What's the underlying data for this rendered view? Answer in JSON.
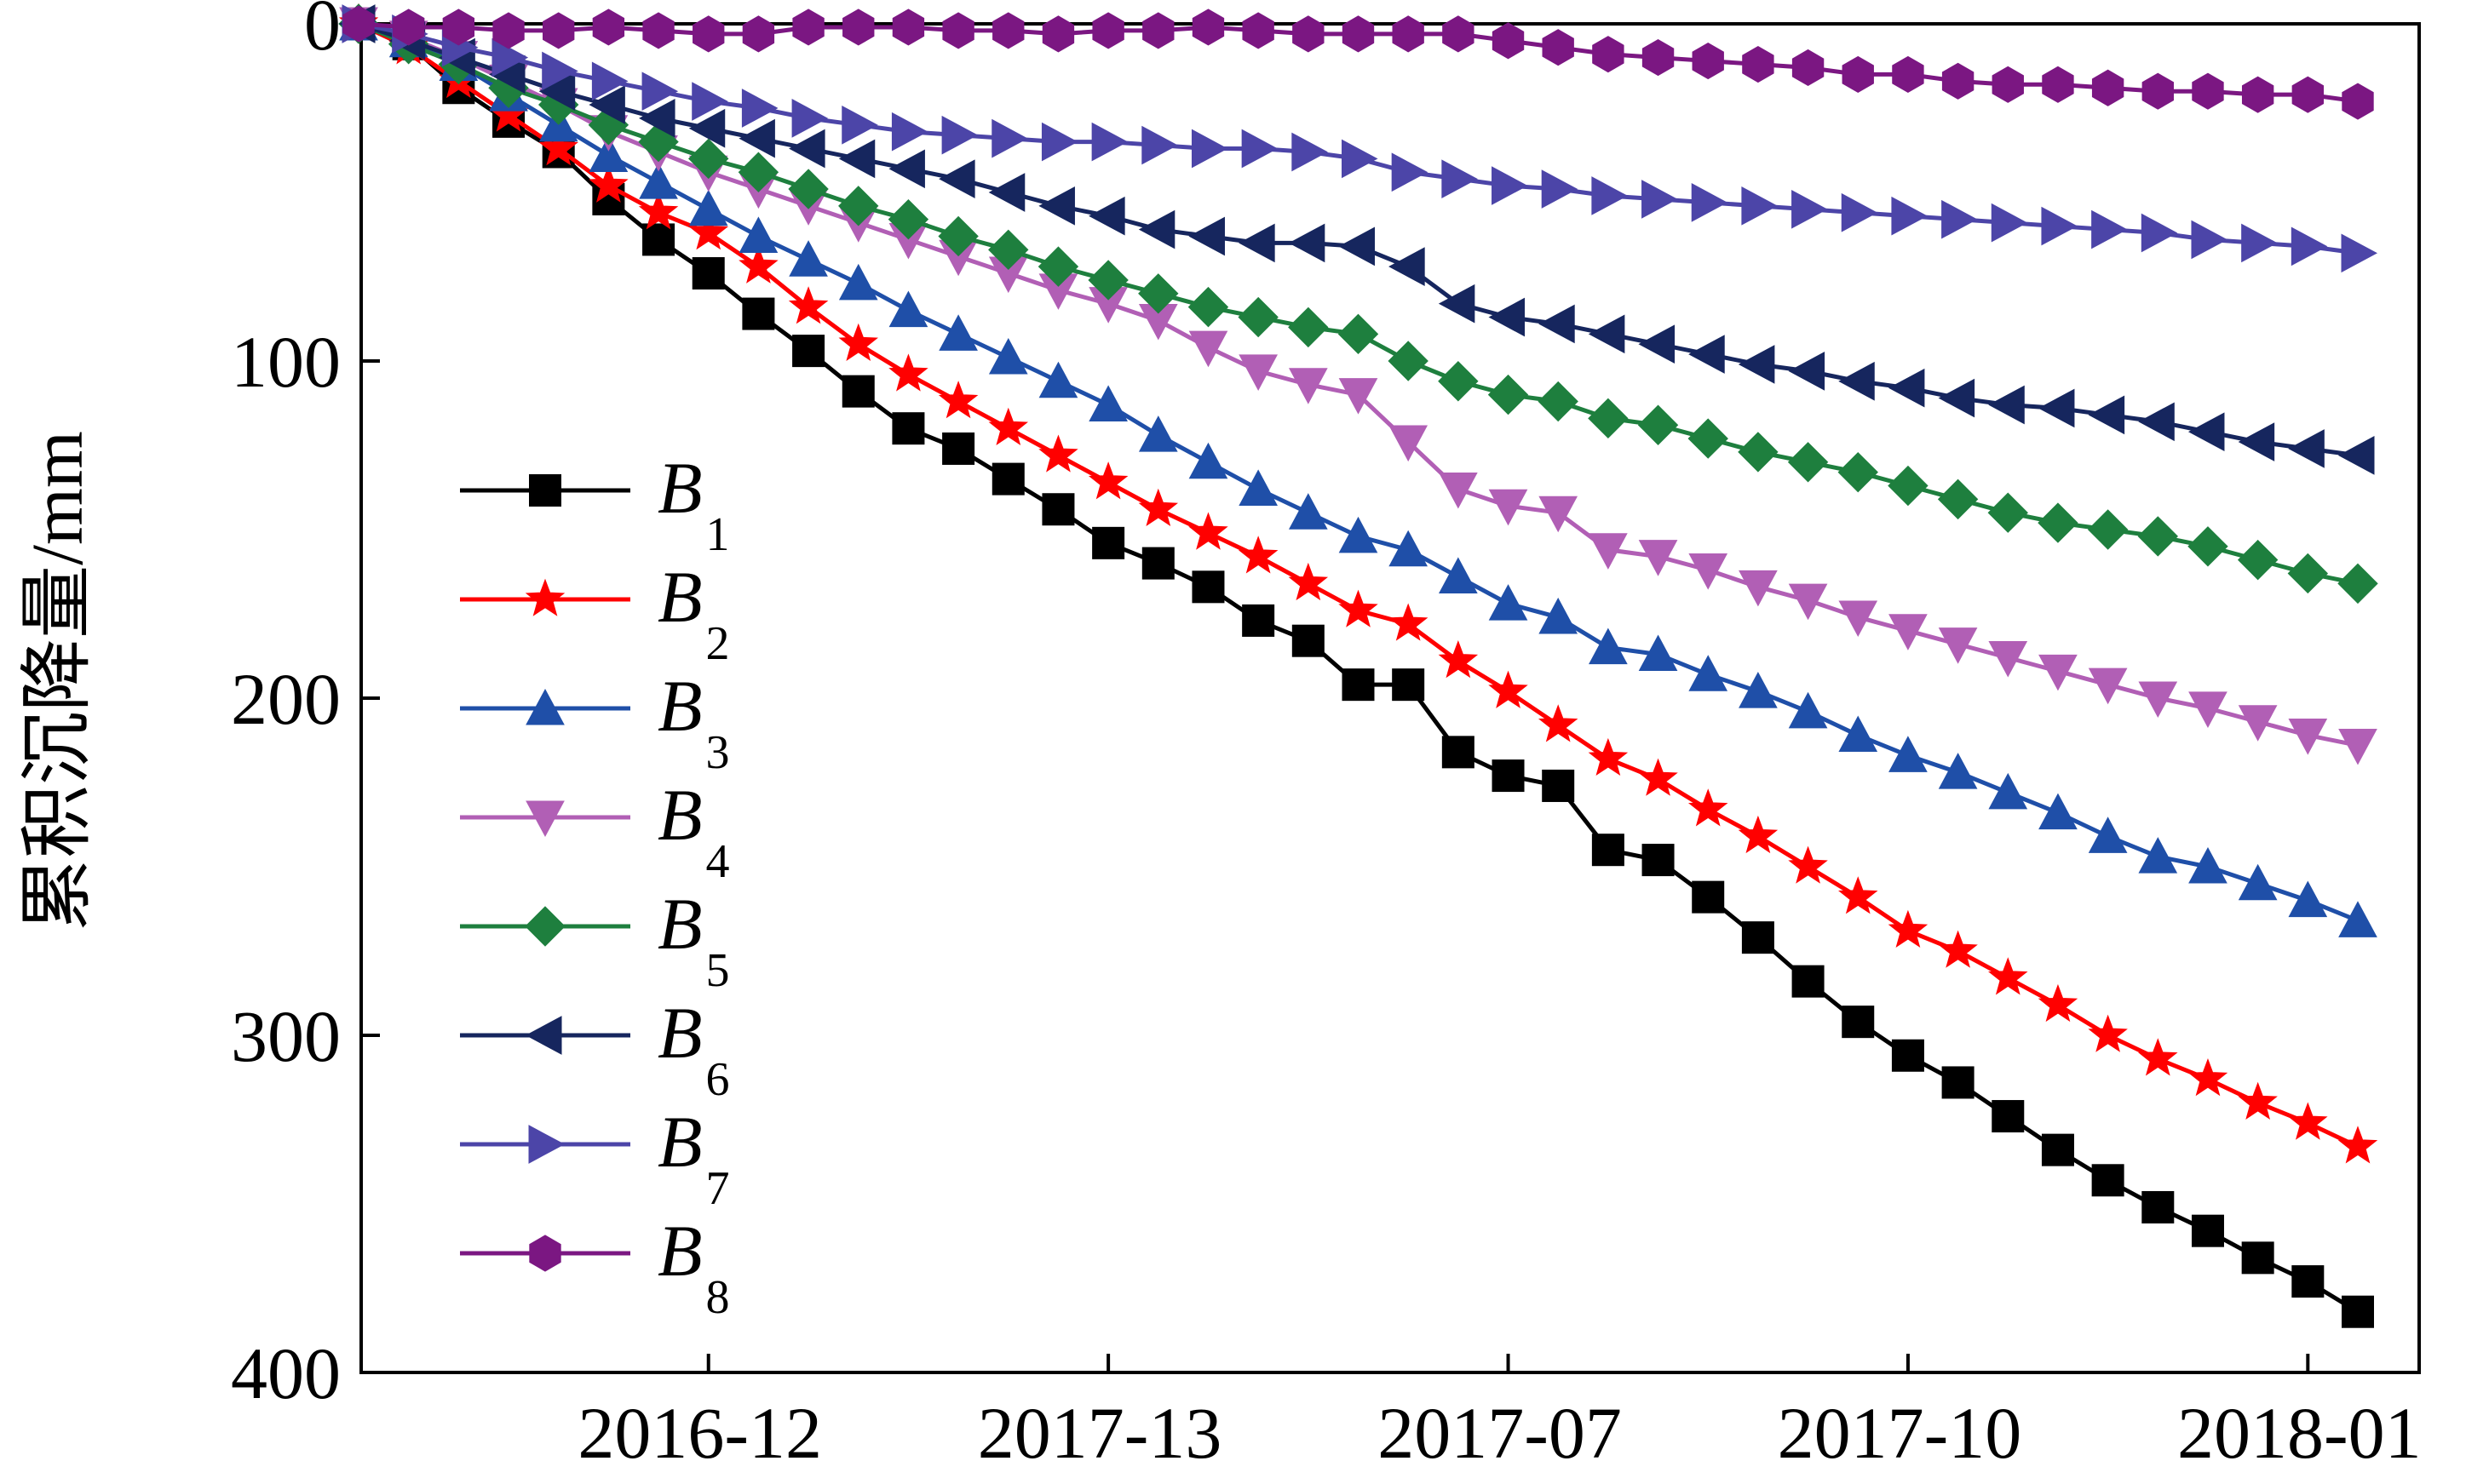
{
  "chart_data": {
    "type": "line",
    "title": "",
    "xlabel": "",
    "ylabel": "累积沉降量/mm",
    "y_inverted": true,
    "ylim": [
      0,
      400
    ],
    "y_ticks": [
      "0",
      "100",
      "200",
      "300",
      "400"
    ],
    "x_ticks": [
      "2016-12",
      "2017-13",
      "2017-07",
      "2017-10",
      "2018-01"
    ],
    "x_point_count": 41,
    "x_tick_point_index": [
      7,
      15,
      23,
      31,
      39
    ],
    "grid": false,
    "legend_placement": "left-middle",
    "series": [
      {
        "name": "B",
        "sub": "1",
        "color": "#000000",
        "marker": "square",
        "values": [
          0,
          6,
          19,
          29,
          38,
          52,
          64,
          74,
          86,
          97,
          109,
          120,
          126,
          135,
          144,
          154,
          160,
          167,
          177,
          183,
          196,
          196,
          216,
          223,
          226,
          245,
          248,
          259,
          271,
          284,
          296,
          306,
          314,
          324,
          334,
          343,
          351,
          358,
          366,
          373,
          382
        ]
      },
      {
        "name": "B",
        "sub": "2",
        "color": "#ff0000",
        "marker": "star",
        "values": [
          0,
          7,
          17,
          27,
          37,
          48,
          56,
          62,
          72,
          84,
          95,
          104,
          112,
          120,
          128,
          136,
          144,
          151,
          158,
          166,
          174,
          178,
          189,
          198,
          208,
          218,
          224,
          233,
          241,
          250,
          259,
          269,
          275,
          283,
          291,
          300,
          307,
          313,
          320,
          326,
          333
        ]
      },
      {
        "name": "B",
        "sub": "3",
        "color": "#1f4fa8",
        "marker": "triangle-up",
        "values": [
          0,
          5,
          12,
          21,
          30,
          39,
          47,
          55,
          63,
          70,
          77,
          85,
          92,
          99,
          106,
          113,
          122,
          130,
          138,
          145,
          152,
          156,
          164,
          172,
          176,
          185,
          187,
          193,
          198,
          204,
          211,
          217,
          222,
          228,
          234,
          241,
          247,
          250,
          255,
          260,
          266
        ]
      },
      {
        "name": "B",
        "sub": "4",
        "color": "#b15fb5",
        "marker": "triangle-down",
        "values": [
          0,
          4,
          10,
          17,
          24,
          32,
          38,
          44,
          49,
          54,
          59,
          64,
          69,
          74,
          79,
          83,
          88,
          96,
          103,
          107,
          110,
          124,
          138,
          143,
          145,
          156,
          158,
          162,
          167,
          171,
          176,
          180,
          184,
          188,
          192,
          196,
          200,
          203,
          207,
          211,
          214
        ]
      },
      {
        "name": "B",
        "sub": "5",
        "color": "#1e7f3e",
        "marker": "diamond",
        "values": [
          0,
          6,
          12,
          19,
          24,
          30,
          35,
          40,
          44,
          49,
          54,
          58,
          63,
          67,
          72,
          76,
          80,
          84,
          87,
          90,
          92,
          100,
          106,
          110,
          112,
          117,
          119,
          123,
          127,
          130,
          133,
          137,
          141,
          145,
          148,
          150,
          152,
          155,
          159,
          163,
          166
        ]
      },
      {
        "name": "B",
        "sub": "6",
        "color": "#16265e",
        "marker": "triangle-left",
        "values": [
          0,
          5,
          10,
          15,
          20,
          24,
          28,
          31,
          34,
          37,
          40,
          43,
          46,
          50,
          54,
          57,
          61,
          63,
          65,
          65,
          66,
          72,
          83,
          87,
          89,
          92,
          95,
          98,
          101,
          103,
          106,
          108,
          111,
          113,
          114,
          116,
          118,
          121,
          124,
          126,
          128
        ]
      },
      {
        "name": "B",
        "sub": "7",
        "color": "#4c45a8",
        "marker": "triangle-right",
        "values": [
          0,
          3,
          7,
          10,
          14,
          17,
          20,
          23,
          25,
          28,
          30,
          32,
          33,
          34,
          35,
          35,
          36,
          37,
          37,
          38,
          40,
          44,
          46,
          48,
          49,
          51,
          52,
          53,
          54,
          55,
          56,
          57,
          58,
          59,
          60,
          61,
          62,
          64,
          65,
          66,
          68
        ]
      },
      {
        "name": "B",
        "sub": "8",
        "color": "#7b1782",
        "marker": "hexagon",
        "values": [
          0,
          1,
          1,
          2,
          2,
          1,
          2,
          3,
          3,
          1,
          1,
          1,
          2,
          2,
          3,
          2,
          2,
          1,
          2,
          3,
          3,
          3,
          3,
          5,
          7,
          9,
          10,
          11,
          12,
          13,
          15,
          15,
          17,
          18,
          18,
          19,
          20,
          20,
          21,
          21,
          23
        ]
      }
    ]
  }
}
